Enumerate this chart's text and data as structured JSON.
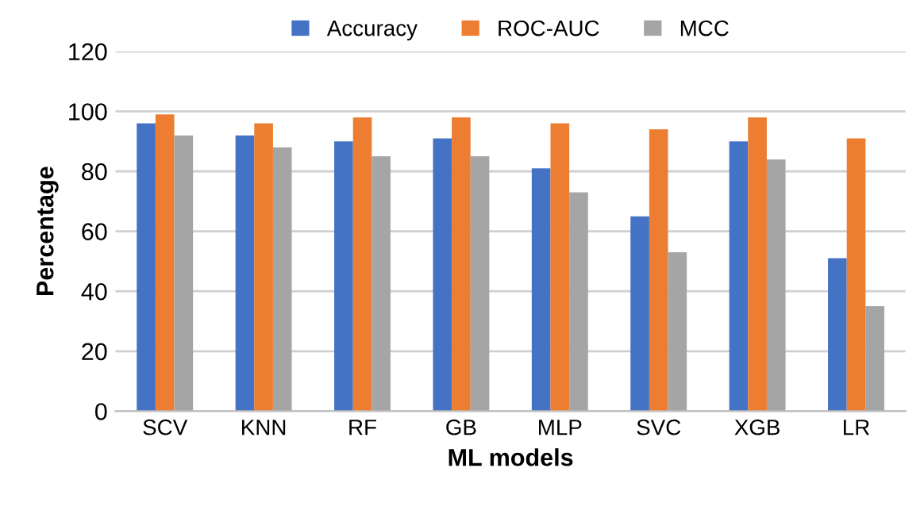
{
  "chart_data": {
    "type": "bar",
    "xlabel": "ML models",
    "ylabel": "Percentage",
    "categories": [
      "SCV",
      "KNN",
      "RF",
      "GB",
      "MLP",
      "SVC",
      "XGB",
      "LR"
    ],
    "series": [
      {
        "name": "Accuracy",
        "color": "#4472c4",
        "values": [
          96,
          92,
          90,
          91,
          81,
          65,
          90,
          51
        ]
      },
      {
        "name": "ROC-AUC",
        "color": "#ed7d31",
        "values": [
          99,
          96,
          98,
          98,
          96,
          94,
          98,
          91
        ]
      },
      {
        "name": "MCC",
        "color": "#a5a5a5",
        "values": [
          92,
          88,
          85,
          85,
          73,
          53,
          84,
          35
        ]
      }
    ],
    "ylim": [
      0,
      120
    ],
    "yticks": [
      0,
      20,
      40,
      60,
      80,
      100,
      120
    ],
    "grid": "y",
    "legend": "top"
  }
}
